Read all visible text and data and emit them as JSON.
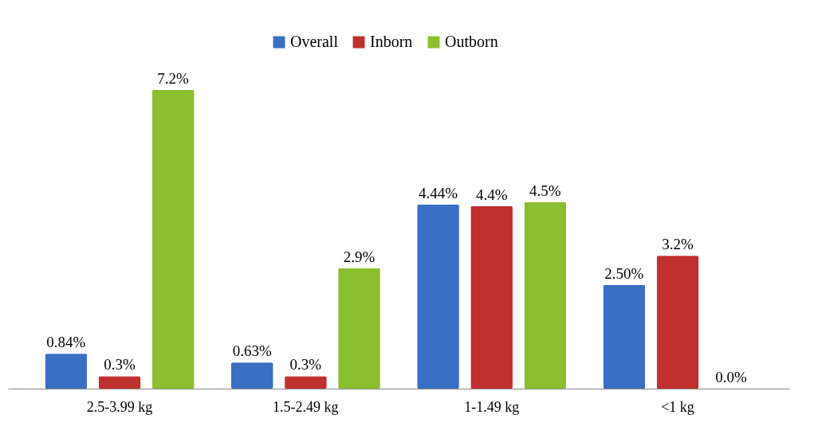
{
  "chart_data": {
    "type": "bar",
    "categories": [
      "2.5-3.99 kg",
      "1.5-2.49 kg",
      "1-1.49 kg",
      "<1 kg"
    ],
    "series": [
      {
        "name": "Overall",
        "color": "#3a6fc4",
        "values": [
          0.84,
          0.63,
          4.44,
          2.5
        ],
        "value_labels": [
          "0.84%",
          "0.63%",
          "4.44%",
          "2.50%"
        ]
      },
      {
        "name": "Inborn",
        "color": "#c0302e",
        "values": [
          0.3,
          0.3,
          4.4,
          3.2
        ],
        "value_labels": [
          "0.3%",
          "0.3%",
          "4.4%",
          "3.2%"
        ]
      },
      {
        "name": "Outborn",
        "color": "#8cbf2f",
        "values": [
          7.2,
          2.9,
          4.5,
          0.0
        ],
        "value_labels": [
          "7.2%",
          "2.9%",
          "4.5%",
          "0.0%"
        ]
      }
    ],
    "legend": "top",
    "grid": false
  }
}
